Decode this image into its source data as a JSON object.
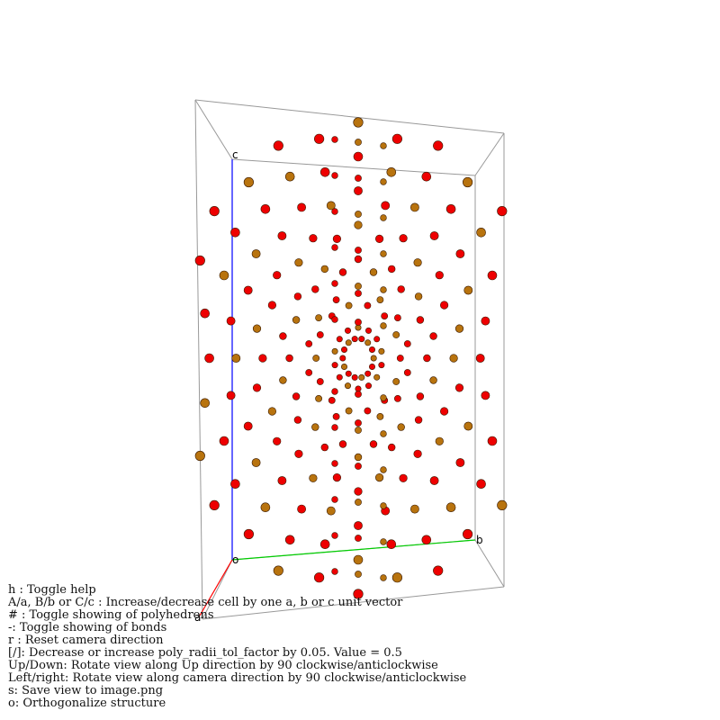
{
  "axes": {
    "a": {
      "label": "a",
      "color": "#ff0000"
    },
    "b": {
      "label": "b",
      "color": "#00cc00"
    },
    "c": {
      "label": "c",
      "color": "#0000ff"
    },
    "origin_label": "o"
  },
  "atoms": {
    "species_colors": {
      "red_atom": "#ee0000",
      "brown_atom": "#b8730e"
    },
    "cell_edge_color": "#999999"
  },
  "help": {
    "lines": [
      "h : Toggle help",
      "A/a, B/b or C/c : Increase/decrease cell by one a, b or c unit vector",
      "# : Toggle showing of polyhedrons",
      "-: Toggle showing of bonds",
      "r : Reset camera direction",
      "[/]: Decrease or increase poly_radii_tol_factor by 0.05. Value = 0.5",
      "Up/Down: Rotate view along Up direction by 90 clockwise/anticlockwise",
      "Left/right: Rotate view along camera direction by 90 clockwise/anticlockwise",
      "s: Save view to image.png",
      "o: Orthogonalize structure"
    ]
  }
}
